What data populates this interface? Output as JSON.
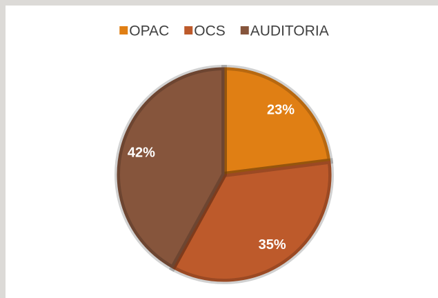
{
  "chart_data": {
    "type": "pie",
    "categories": [
      "OPAC",
      "OCS",
      "AUDITORIA"
    ],
    "values": [
      23,
      35,
      42
    ],
    "value_labels": [
      "23%",
      "35%",
      "42%"
    ],
    "colors": [
      "#e07f14",
      "#bd5a2b",
      "#86553c"
    ],
    "legend": "top"
  }
}
